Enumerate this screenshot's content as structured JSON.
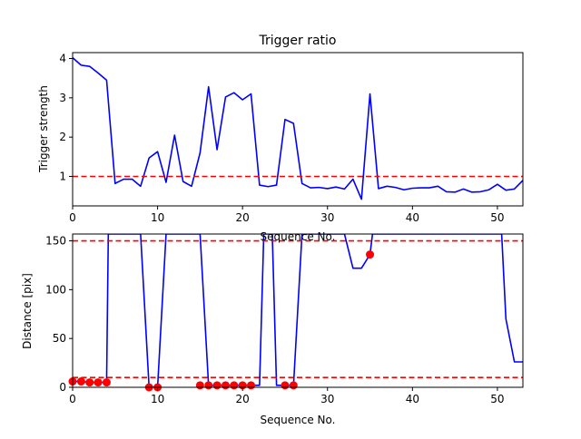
{
  "chart_data": [
    {
      "type": "line",
      "title": "Trigger ratio",
      "xlabel": "Sequence No.",
      "ylabel": "Trigger strength",
      "xlim": [
        0,
        53
      ],
      "ylim": [
        0.25,
        4.15
      ],
      "xticks": [
        0,
        10,
        20,
        30,
        40,
        50
      ],
      "yticks": [
        1,
        2,
        3,
        4
      ],
      "grid": false,
      "series": [
        {
          "color": "#0000ff",
          "x": [
            0,
            1,
            2,
            3,
            4,
            5,
            6,
            7,
            8,
            9,
            10,
            11,
            12,
            13,
            14,
            15,
            16,
            17,
            18,
            19,
            20,
            21,
            22,
            23,
            24,
            25,
            26,
            27,
            28,
            29,
            30,
            31,
            32,
            33,
            34,
            35,
            36,
            37,
            38,
            39,
            40,
            41,
            42,
            43,
            44,
            45,
            46,
            47,
            48,
            49,
            50,
            51,
            52,
            53
          ],
          "values": [
            4.02,
            3.83,
            3.8,
            3.63,
            3.45,
            0.82,
            0.93,
            0.93,
            0.75,
            1.47,
            1.63,
            0.85,
            2.05,
            0.87,
            0.75,
            1.6,
            3.28,
            1.68,
            3.02,
            3.13,
            2.95,
            3.1,
            0.78,
            0.74,
            0.78,
            2.45,
            2.35,
            0.82,
            0.71,
            0.72,
            0.69,
            0.73,
            0.68,
            0.93,
            0.42,
            3.1,
            0.69,
            0.75,
            0.72,
            0.66,
            0.7,
            0.71,
            0.71,
            0.75,
            0.61,
            0.6,
            0.68,
            0.6,
            0.61,
            0.66,
            0.8,
            0.65,
            0.68,
            0.9
          ]
        }
      ],
      "reference_lines": [
        {
          "y": 1,
          "color": "#ff0000",
          "style": "dashed"
        }
      ]
    },
    {
      "type": "line",
      "title": "",
      "xlabel": "Sequence No.",
      "ylabel": "Distance [pix]",
      "xlim": [
        0,
        53
      ],
      "ylim": [
        0,
        157
      ],
      "xticks": [
        0,
        10,
        20,
        30,
        40,
        50
      ],
      "yticks": [
        0,
        50,
        100,
        150
      ],
      "grid": false,
      "series": [
        {
          "color": "#0000ff",
          "x": [
            0,
            1,
            2,
            3,
            4,
            4.2,
            8,
            9,
            10,
            11,
            15,
            16,
            17,
            18,
            19,
            20,
            21,
            22,
            22.5,
            23.5,
            24,
            25,
            26,
            27,
            32,
            33,
            34,
            35,
            35.3,
            50.5,
            51,
            52,
            53
          ],
          "values": [
            6,
            6,
            5,
            5,
            5,
            157,
            157,
            0,
            0,
            157,
            157,
            2,
            2,
            2,
            2,
            2,
            2,
            2,
            157,
            157,
            2,
            2,
            2,
            157,
            157,
            122,
            122,
            136,
            157,
            157,
            70,
            26,
            26
          ]
        }
      ],
      "markers": {
        "color": "#ff0000",
        "x": [
          0,
          1,
          2,
          3,
          4,
          9,
          10,
          15,
          16,
          17,
          18,
          19,
          20,
          21,
          25,
          26,
          35
        ],
        "values": [
          6,
          6,
          5,
          5,
          5,
          0,
          0,
          2,
          2,
          2,
          2,
          2,
          2,
          2,
          2,
          2,
          136
        ]
      },
      "reference_lines": [
        {
          "y": 150,
          "color": "#ff0000",
          "style": "dashed"
        },
        {
          "y": 10,
          "color": "#ff0000",
          "style": "dashed"
        }
      ]
    }
  ]
}
